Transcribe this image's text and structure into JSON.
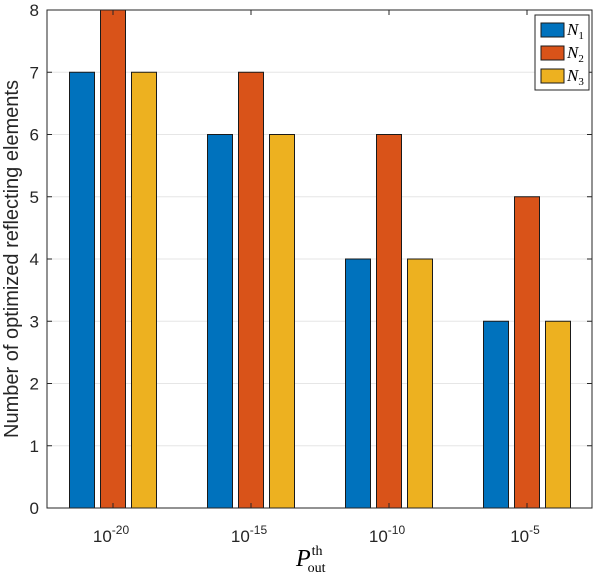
{
  "chart_data": {
    "type": "bar",
    "categories": [
      "10^-20",
      "10^-15",
      "10^-10",
      "10^-5"
    ],
    "category_labels": [
      {
        "base": "10",
        "exp": "-20"
      },
      {
        "base": "10",
        "exp": "-15"
      },
      {
        "base": "10",
        "exp": "-10"
      },
      {
        "base": "10",
        "exp": "-5"
      }
    ],
    "series": [
      {
        "name": "N1",
        "label_main": "N",
        "label_sub": "1",
        "color": "#0072BD",
        "values": [
          7,
          6,
          4,
          3
        ]
      },
      {
        "name": "N2",
        "label_main": "N",
        "label_sub": "2",
        "color": "#D95319",
        "values": [
          8,
          7,
          6,
          5
        ]
      },
      {
        "name": "N3",
        "label_main": "N",
        "label_sub": "3",
        "color": "#EDB120",
        "values": [
          7,
          6,
          4,
          3
        ]
      }
    ],
    "ylabel": "Number of optimized reflecting elements",
    "xlabel": {
      "main": "P",
      "sup": "th",
      "sub": "out"
    },
    "ylim": [
      0,
      8
    ],
    "yticks": [
      0,
      1,
      2,
      3,
      4,
      5,
      6,
      7,
      8
    ],
    "grid": true,
    "legend_position": "top-right"
  }
}
